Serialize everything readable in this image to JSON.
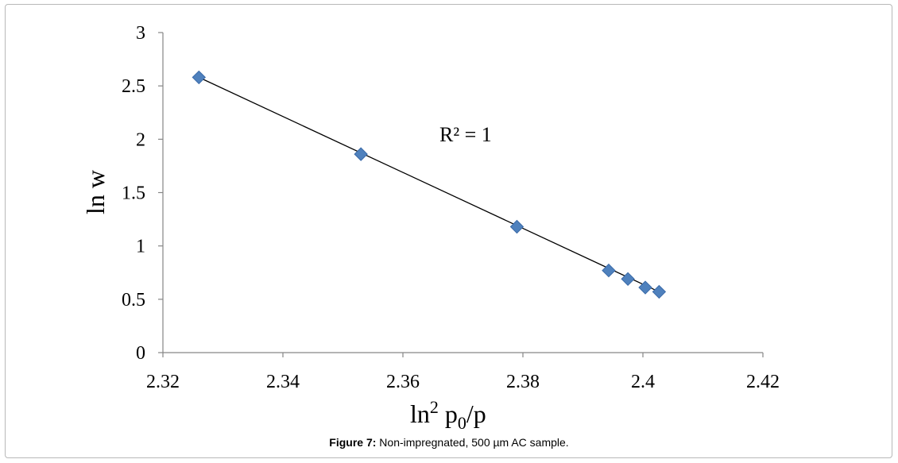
{
  "caption": {
    "label": "Figure 7:",
    "text": " Non-impregnated, 500 µm AC sample."
  },
  "chart_data": {
    "type": "scatter",
    "xlabel_base": "ln",
    "xlabel_sup": "2",
    "xlabel_p": "p",
    "xlabel_sub": "0",
    "xlabel_tail": "/p",
    "ylabel": "ln w",
    "annotation": "R² = 1",
    "xlim": [
      2.32,
      2.42
    ],
    "ylim": [
      0,
      3
    ],
    "x_ticks": [
      "2.32",
      "2.34",
      "2.36",
      "2.38",
      "2.4",
      "2.42"
    ],
    "y_ticks": [
      "0",
      "0.5",
      "1",
      "1.5",
      "2",
      "2.5",
      "3"
    ],
    "points": [
      {
        "x": 2.326,
        "y": 2.58
      },
      {
        "x": 2.353,
        "y": 1.86
      },
      {
        "x": 2.379,
        "y": 1.18
      },
      {
        "x": 2.3943,
        "y": 0.77
      },
      {
        "x": 2.3975,
        "y": 0.69
      },
      {
        "x": 2.4004,
        "y": 0.61
      },
      {
        "x": 2.4027,
        "y": 0.57
      }
    ],
    "trendline": {
      "x": [
        2.326,
        2.4027
      ],
      "y": [
        2.58,
        0.57
      ]
    },
    "marker_color": "#4f81bd",
    "marker_edge": "#3a6aa8",
    "line_color": "#000000"
  }
}
